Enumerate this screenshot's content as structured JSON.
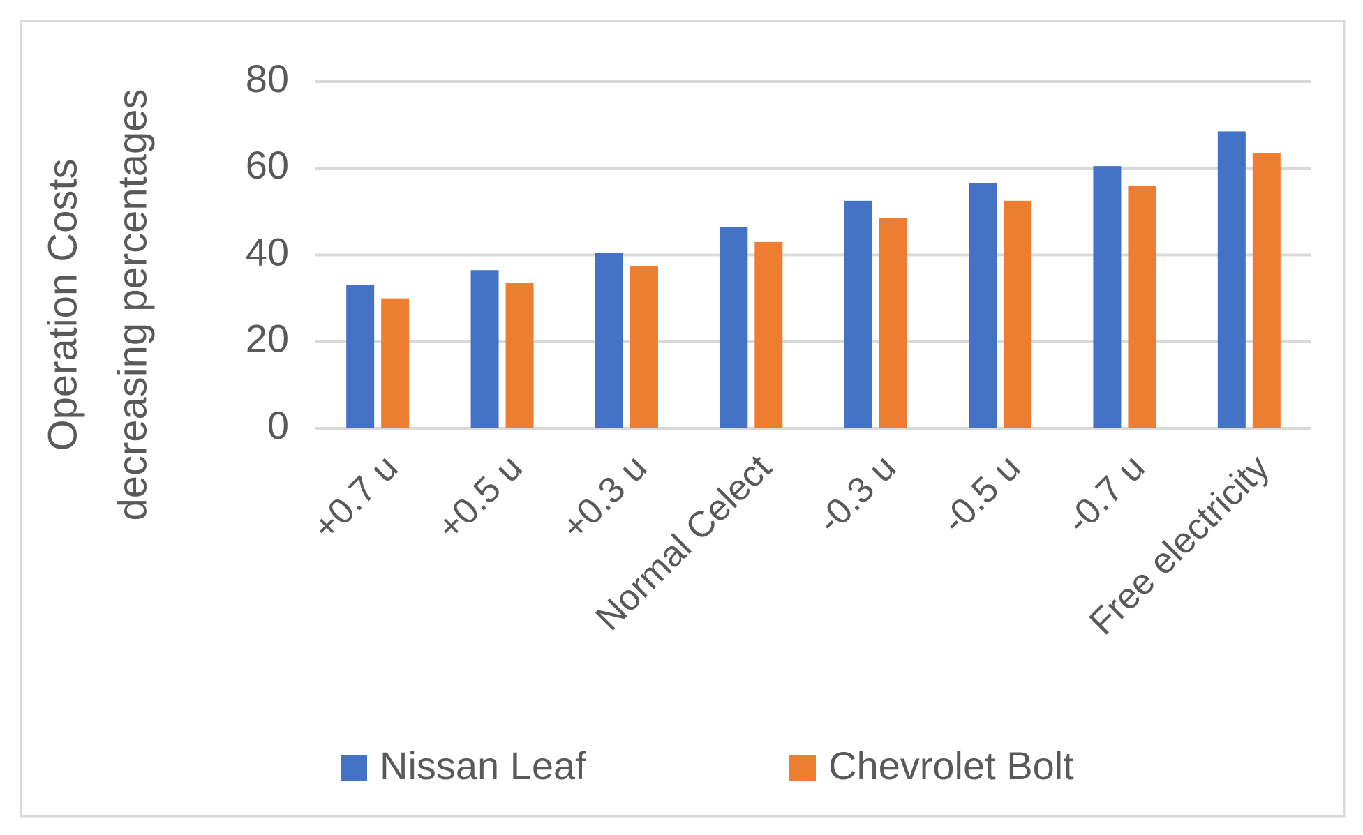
{
  "chart_data": {
    "type": "bar",
    "ylabel": [
      "Operation Costs",
      "decreasing percentages"
    ],
    "categories": [
      "+0.7 u",
      "+0.5 u",
      "+0.3 u",
      "Normal Celect",
      "-0.3 u",
      "-0.5 u",
      "-0.7 u",
      "Free electricity"
    ],
    "series": [
      {
        "name": "Nissan Leaf",
        "color": "#4472c4",
        "values": [
          33,
          36.5,
          40.5,
          46.5,
          52.5,
          56.5,
          60.5,
          68.5
        ]
      },
      {
        "name": "Chevrolet Bolt",
        "color": "#ed7d31",
        "values": [
          30,
          33.5,
          37.5,
          43,
          48.5,
          52.5,
          56,
          63.5
        ]
      }
    ],
    "ylim": [
      0,
      80
    ],
    "yticks": [
      0,
      20,
      40,
      60,
      80
    ],
    "grid": true,
    "legend": "bottom"
  }
}
